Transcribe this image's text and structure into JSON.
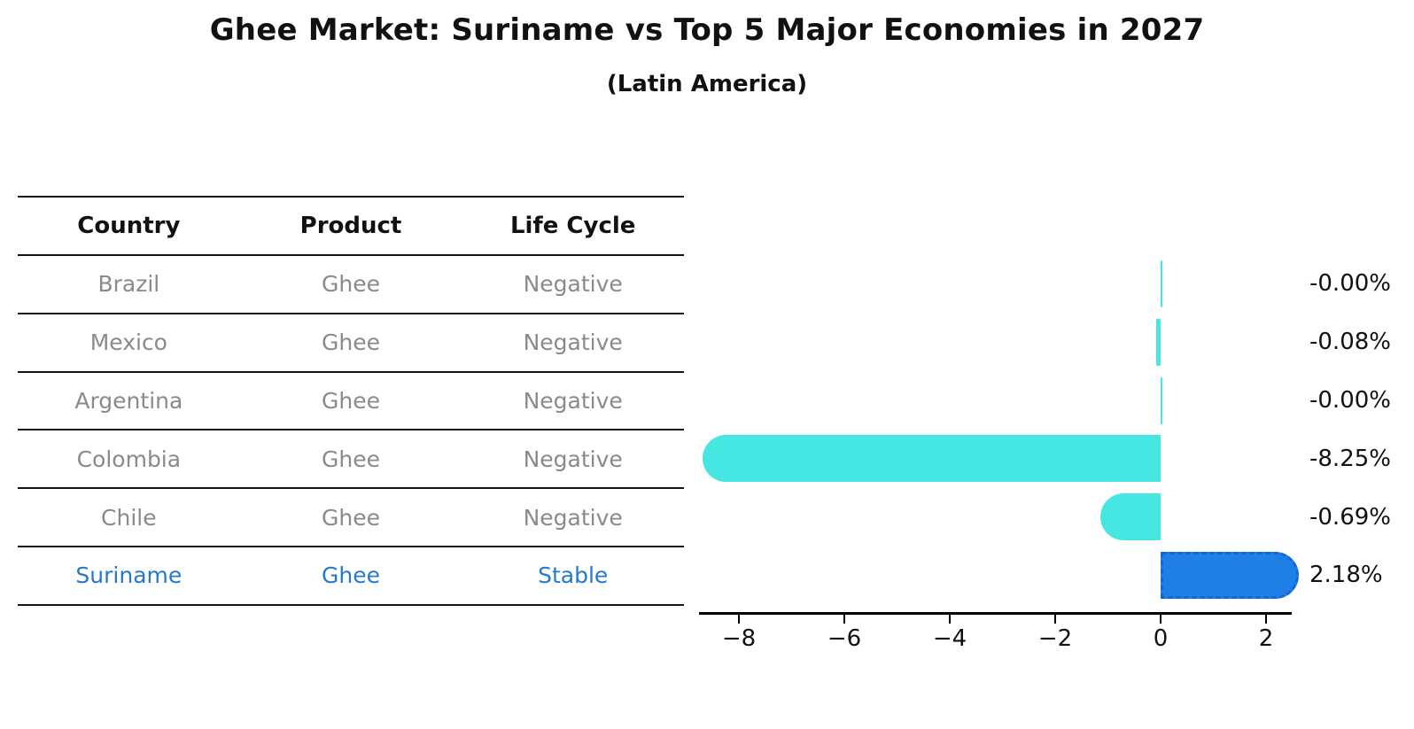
{
  "title": "Ghee Market: Suriname vs Top 5 Major Economies in 2027",
  "subtitle": "(Latin America)",
  "table": {
    "headers": [
      "Country",
      "Product",
      "Life Cycle"
    ],
    "rows": [
      {
        "country": "Brazil",
        "product": "Ghee",
        "life_cycle": "Negative",
        "highlighted": false
      },
      {
        "country": "Mexico",
        "product": "Ghee",
        "life_cycle": "Negative",
        "highlighted": false
      },
      {
        "country": "Argentina",
        "product": "Ghee",
        "life_cycle": "Negative",
        "highlighted": false
      },
      {
        "country": "Colombia",
        "product": "Ghee",
        "life_cycle": "Negative",
        "highlighted": false
      },
      {
        "country": "Chile",
        "product": "Ghee",
        "life_cycle": "Negative",
        "highlighted": false
      },
      {
        "country": "Suriname",
        "product": "Ghee",
        "life_cycle": "Stable",
        "highlighted": true
      }
    ]
  },
  "chart_data": {
    "type": "bar",
    "orientation": "horizontal",
    "categories": [
      "Brazil",
      "Mexico",
      "Argentina",
      "Colombia",
      "Chile",
      "Suriname"
    ],
    "values": [
      -0.0,
      -0.08,
      -0.0,
      -8.25,
      -0.69,
      2.18
    ],
    "value_labels": [
      "-0.00%",
      "-0.08%",
      "-0.00%",
      "-8.25%",
      "-0.69%",
      "2.18%"
    ],
    "xticks": [
      -8,
      -6,
      -4,
      -2,
      0,
      2
    ],
    "xtick_labels": [
      "−8",
      "−6",
      "−4",
      "−2",
      "0",
      "2"
    ],
    "xlim": [
      -8.75,
      2.5
    ],
    "grid": false,
    "legend": "none",
    "bar_colors": [
      "#46e6e2",
      "#46e6e2",
      "#46e6e2",
      "#46e6e2",
      "#46e6e2",
      "#1e80e6"
    ],
    "highlight_index": 5,
    "highlight_border_color": "#1668cc",
    "highlight_text_color": "#2579cd"
  }
}
